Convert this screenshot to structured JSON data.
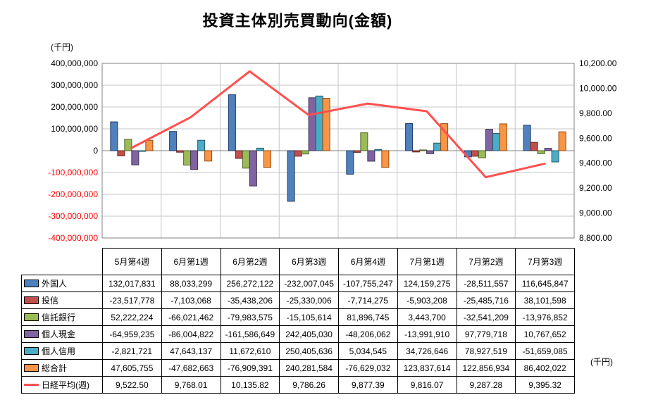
{
  "title": "投資主体別売買動向(金額)",
  "left_axis": {
    "unit": "(千円)",
    "tick_labels": [
      "400,000,000",
      "300,000,000",
      "200,000,000",
      "100,000,000",
      "0",
      "-100,000,000",
      "-200,000,000",
      "-300,000,000",
      "-400,000,000"
    ],
    "negative_color": "#FF0000"
  },
  "right_axis": {
    "unit": "(千円)",
    "tick_labels": [
      "10,200.00",
      "10,000.00",
      "9,800.00",
      "9,600.00",
      "9,400.00",
      "9,200.00",
      "9,000.00",
      "8,800.00"
    ]
  },
  "chart_data": {
    "type": "bar+line",
    "title": "投資主体別売買動向(金額)",
    "categories": [
      "5月第4週",
      "6月第1週",
      "6月第2週",
      "6月第3週",
      "6月第4週",
      "7月第1週",
      "7月第2週",
      "7月第3週"
    ],
    "ylim_left": [
      -400000000,
      400000000
    ],
    "ylim_right": [
      8800,
      10200
    ],
    "grid": true,
    "legend_position": "table-left",
    "series": [
      {
        "name": "外国人",
        "type": "bar",
        "color": "#4F81BD",
        "border": "#1F3864",
        "format": "int",
        "values": [
          132017831,
          88033299,
          256272122,
          -232007045,
          -107755247,
          124159275,
          -28511557,
          116645847
        ]
      },
      {
        "name": "投信",
        "type": "bar",
        "color": "#C0504D",
        "border": "#632523",
        "format": "int",
        "values": [
          -23517778,
          -7103068,
          -35438206,
          -25330006,
          -7714275,
          -5903208,
          -25485716,
          38101598
        ]
      },
      {
        "name": "信託銀行",
        "type": "bar",
        "color": "#9BBB59",
        "border": "#4F6228",
        "format": "int",
        "values": [
          52222224,
          -66021462,
          -79983575,
          -15105614,
          81896745,
          3443700,
          -32541209,
          -13976852
        ]
      },
      {
        "name": "個人現金",
        "type": "bar",
        "color": "#8064A2",
        "border": "#3F3151",
        "format": "int",
        "values": [
          -64959235,
          -86004822,
          -161586649,
          242405030,
          -48206062,
          -13991910,
          97779718,
          10767652
        ]
      },
      {
        "name": "個人信用",
        "type": "bar",
        "color": "#4BACC6",
        "border": "#215868",
        "format": "int",
        "values": [
          -2821721,
          47643137,
          11672610,
          250405636,
          5034545,
          34726646,
          78927519,
          -51659085
        ]
      },
      {
        "name": "総合計",
        "type": "bar",
        "color": "#F79646",
        "border": "#974706",
        "format": "int",
        "values": [
          47605755,
          -47682663,
          -76909391,
          240281584,
          -76629032,
          123837614,
          122856934,
          86402022
        ]
      },
      {
        "name": "日経平均(週)",
        "type": "line",
        "color": "#FF5050",
        "format": "2dp",
        "values": [
          9522.5,
          9768.01,
          10135.82,
          9786.26,
          9877.39,
          9816.07,
          9287.28,
          9395.32
        ]
      }
    ]
  }
}
